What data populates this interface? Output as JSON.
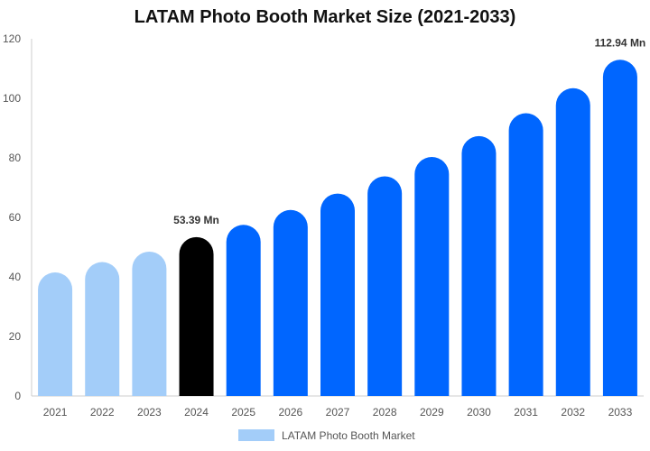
{
  "chart_data": {
    "type": "bar",
    "title": "LATAM Photo Booth Market Size (2021-2033)",
    "categories": [
      "2021",
      "2022",
      "2023",
      "2024",
      "2025",
      "2026",
      "2027",
      "2028",
      "2029",
      "2030",
      "2031",
      "2032",
      "2033"
    ],
    "series": [
      {
        "name": "LATAM Photo Booth Market",
        "values": [
          41.5,
          45,
          48.5,
          53.39,
          57.5,
          62.5,
          68,
          73.8,
          80.3,
          87.3,
          95,
          103.4,
          112.94
        ]
      }
    ],
    "data_labels": [
      {
        "category": "2024",
        "text": "53.39 Mn"
      },
      {
        "category": "2033",
        "text": "112.94 Mn"
      }
    ],
    "ylim": [
      0,
      120
    ],
    "yticks": [
      0,
      20,
      40,
      60,
      80,
      100,
      120
    ],
    "xlabel": "",
    "ylabel": "",
    "grid": false,
    "legend_position": "bottom",
    "colors": {
      "historical": "#a3cdf9",
      "current": "#000000",
      "forecast": "#0066ff",
      "legend_swatch": "#a3cdf9"
    },
    "bar_style": "rounded-top"
  }
}
